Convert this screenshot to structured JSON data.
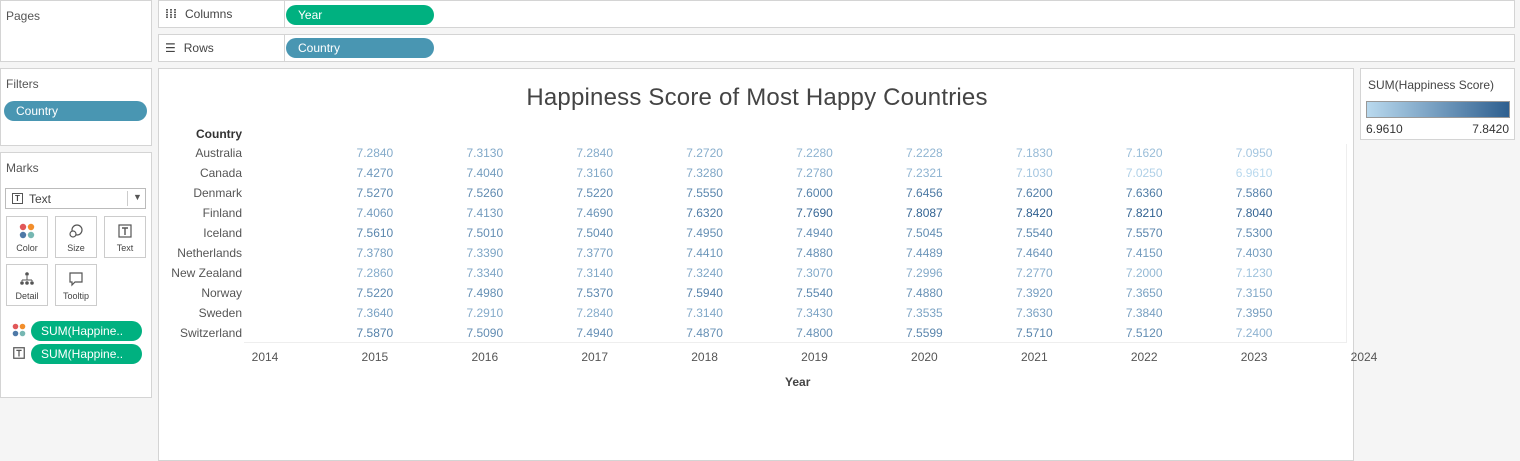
{
  "pages": {
    "title": "Pages"
  },
  "columns": {
    "label": "Columns",
    "pill": "Year"
  },
  "rows": {
    "label": "Rows",
    "pill": "Country"
  },
  "filters": {
    "title": "Filters",
    "pill": "Country"
  },
  "marks": {
    "title": "Marks",
    "mark_type": "Text",
    "buttons": {
      "color": "Color",
      "size": "Size",
      "text": "Text",
      "detail": "Detail",
      "tooltip": "Tooltip"
    },
    "fields": [
      {
        "icon": "color-icon",
        "label": "SUM(Happine.."
      },
      {
        "icon": "text-icon",
        "label": "SUM(Happine.."
      }
    ]
  },
  "legend": {
    "title": "SUM(Happiness Score)",
    "min": "6.9610",
    "max": "7.8420",
    "color_low": "#b9d9ee",
    "color_high": "#2e5f8f"
  },
  "chart_data": {
    "type": "table",
    "title": "Happiness Score of Most Happy Countries",
    "row_header": "Country",
    "x_label": "Year",
    "x_ticks": [
      "2014",
      "2015",
      "2016",
      "2017",
      "2018",
      "2019",
      "2020",
      "2021",
      "2022",
      "2023",
      "2024"
    ],
    "years": [
      "2015",
      "2016",
      "2017",
      "2018",
      "2019",
      "2020",
      "2021",
      "2022",
      "2023"
    ],
    "rows": [
      {
        "country": "Australia",
        "values": [
          "7.2840",
          "7.3130",
          "7.2840",
          "7.2720",
          "7.2280",
          "7.2228",
          "7.1830",
          "7.1620",
          "7.0950"
        ]
      },
      {
        "country": "Canada",
        "values": [
          "7.4270",
          "7.4040",
          "7.3160",
          "7.3280",
          "7.2780",
          "7.2321",
          "7.1030",
          "7.0250",
          "6.9610"
        ]
      },
      {
        "country": "Denmark",
        "values": [
          "7.5270",
          "7.5260",
          "7.5220",
          "7.5550",
          "7.6000",
          "7.6456",
          "7.6200",
          "7.6360",
          "7.5860"
        ]
      },
      {
        "country": "Finland",
        "values": [
          "7.4060",
          "7.4130",
          "7.4690",
          "7.6320",
          "7.7690",
          "7.8087",
          "7.8420",
          "7.8210",
          "7.8040"
        ]
      },
      {
        "country": "Iceland",
        "values": [
          "7.5610",
          "7.5010",
          "7.5040",
          "7.4950",
          "7.4940",
          "7.5045",
          "7.5540",
          "7.5570",
          "7.5300"
        ]
      },
      {
        "country": "Netherlands",
        "values": [
          "7.3780",
          "7.3390",
          "7.3770",
          "7.4410",
          "7.4880",
          "7.4489",
          "7.4640",
          "7.4150",
          "7.4030"
        ]
      },
      {
        "country": "New Zealand",
        "values": [
          "7.2860",
          "7.3340",
          "7.3140",
          "7.3240",
          "7.3070",
          "7.2996",
          "7.2770",
          "7.2000",
          "7.1230"
        ]
      },
      {
        "country": "Norway",
        "values": [
          "7.5220",
          "7.4980",
          "7.5370",
          "7.5940",
          "7.5540",
          "7.4880",
          "7.3920",
          "7.3650",
          "7.3150"
        ]
      },
      {
        "country": "Sweden",
        "values": [
          "7.3640",
          "7.2910",
          "7.2840",
          "7.3140",
          "7.3430",
          "7.3535",
          "7.3630",
          "7.3840",
          "7.3950"
        ]
      },
      {
        "country": "Switzerland",
        "values": [
          "7.5870",
          "7.5090",
          "7.4940",
          "7.4870",
          "7.4800",
          "7.5599",
          "7.5710",
          "7.5120",
          "7.2400"
        ]
      }
    ]
  }
}
